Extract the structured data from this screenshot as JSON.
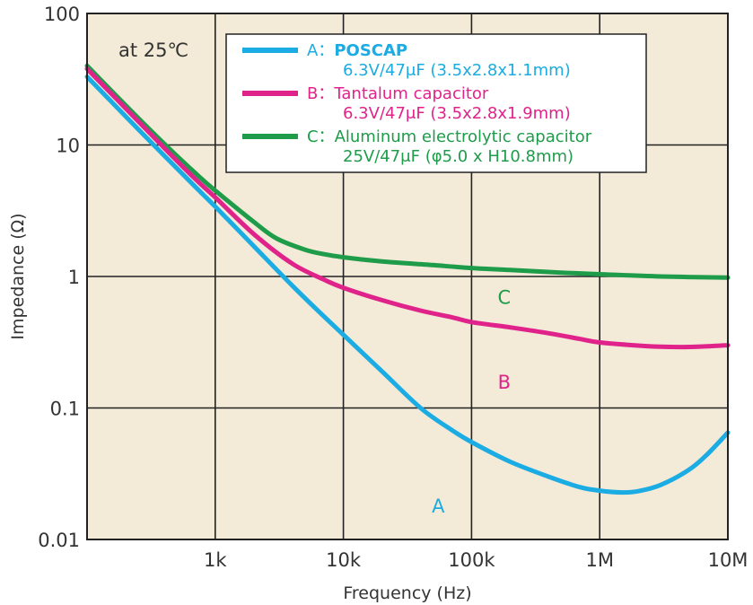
{
  "chart_data": {
    "type": "line",
    "x_scale": "log",
    "y_scale": "log",
    "xlabel": "Frequency (Hz)",
    "ylabel": "Impedance (Ω)",
    "xlim": [
      100,
      10000000
    ],
    "ylim": [
      0.01,
      100
    ],
    "x_ticks": [
      {
        "value": 1000,
        "label": "1k"
      },
      {
        "value": 10000,
        "label": "10k"
      },
      {
        "value": 100000,
        "label": "100k"
      },
      {
        "value": 1000000,
        "label": "1M"
      },
      {
        "value": 10000000,
        "label": "10M"
      }
    ],
    "y_ticks": [
      {
        "value": 100,
        "label": "100"
      },
      {
        "value": 10,
        "label": "10"
      },
      {
        "value": 1,
        "label": "1"
      },
      {
        "value": 0.1,
        "label": "0.1"
      },
      {
        "value": 0.01,
        "label": "0.01"
      }
    ],
    "grid": true,
    "plot_background": "#f3ead8",
    "annotation": "at 25℃",
    "legend_position": "top-right",
    "series": [
      {
        "id": "A",
        "color": "#1aace3",
        "legend_prefix": "A：",
        "legend_name": "POSCAP",
        "legend_spec": "6.3V/47μF (3.5x2.8x1.1mm)",
        "curve_label": "A",
        "curve_label_at": {
          "x": 55000,
          "y": 0.016
        },
        "points": [
          [
            100,
            33
          ],
          [
            200,
            16.5
          ],
          [
            400,
            8.3
          ],
          [
            700,
            4.8
          ],
          [
            1000,
            3.4
          ],
          [
            2000,
            1.7
          ],
          [
            4000,
            0.85
          ],
          [
            7000,
            0.5
          ],
          [
            10000,
            0.36
          ],
          [
            20000,
            0.19
          ],
          [
            40000,
            0.1
          ],
          [
            70000,
            0.068
          ],
          [
            100000,
            0.055
          ],
          [
            200000,
            0.039
          ],
          [
            400000,
            0.03
          ],
          [
            700000,
            0.025
          ],
          [
            1000000,
            0.0235
          ],
          [
            1500000,
            0.0228
          ],
          [
            2000000,
            0.0233
          ],
          [
            3000000,
            0.026
          ],
          [
            5000000,
            0.034
          ],
          [
            7000000,
            0.045
          ],
          [
            10000000,
            0.065
          ]
        ]
      },
      {
        "id": "B",
        "color": "#e0238a",
        "legend_prefix": "B：",
        "legend_name": "Tantalum capacitor",
        "legend_spec": "6.3V/47μF (3.5x2.8x1.9mm)",
        "curve_label": "B",
        "curve_label_at": {
          "x": 180000,
          "y": 0.14
        },
        "points": [
          [
            100,
            38
          ],
          [
            200,
            19
          ],
          [
            400,
            9.5
          ],
          [
            700,
            5.5
          ],
          [
            1000,
            4
          ],
          [
            2000,
            2.1
          ],
          [
            4000,
            1.25
          ],
          [
            7000,
            0.95
          ],
          [
            10000,
            0.82
          ],
          [
            20000,
            0.66
          ],
          [
            40000,
            0.55
          ],
          [
            70000,
            0.49
          ],
          [
            100000,
            0.45
          ],
          [
            200000,
            0.41
          ],
          [
            400000,
            0.37
          ],
          [
            700000,
            0.335
          ],
          [
            1000000,
            0.315
          ],
          [
            2000000,
            0.298
          ],
          [
            3000000,
            0.292
          ],
          [
            5000000,
            0.291
          ],
          [
            10000000,
            0.3
          ]
        ]
      },
      {
        "id": "C",
        "color": "#1e9c4a",
        "legend_prefix": "C：",
        "legend_name": "Aluminum electrolytic capacitor",
        "legend_spec": "25V/47μF (φ5.0 x H10.8mm)",
        "curve_label": "C",
        "curve_label_at": {
          "x": 180000,
          "y": 0.62
        },
        "points": [
          [
            100,
            40
          ],
          [
            200,
            20
          ],
          [
            400,
            10.2
          ],
          [
            700,
            6.1
          ],
          [
            1000,
            4.5
          ],
          [
            2000,
            2.6
          ],
          [
            3000,
            1.95
          ],
          [
            5000,
            1.6
          ],
          [
            7000,
            1.48
          ],
          [
            10000,
            1.4
          ],
          [
            20000,
            1.3
          ],
          [
            50000,
            1.22
          ],
          [
            100000,
            1.16
          ],
          [
            200000,
            1.12
          ],
          [
            500000,
            1.07
          ],
          [
            1000000,
            1.04
          ],
          [
            3000000,
            1.0
          ],
          [
            10000000,
            0.98
          ]
        ]
      }
    ]
  }
}
